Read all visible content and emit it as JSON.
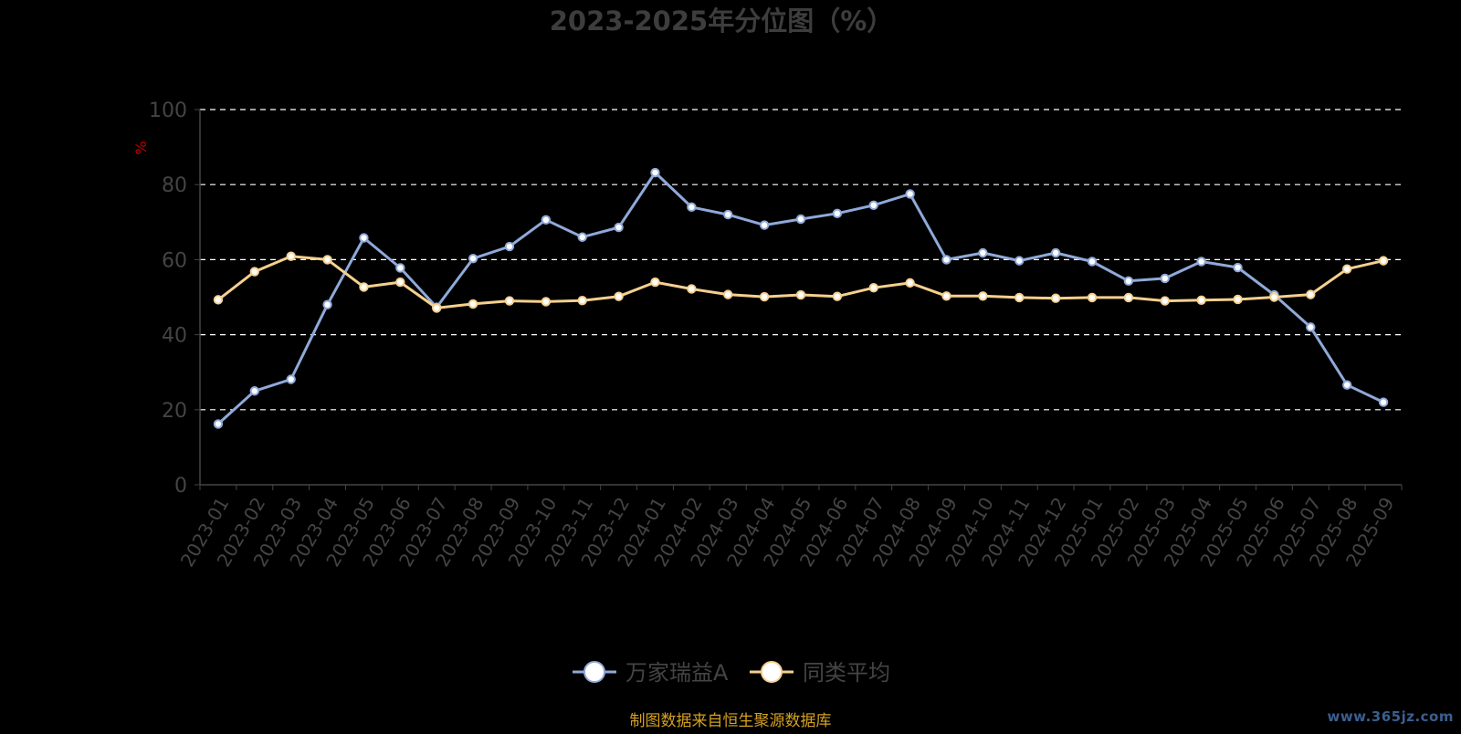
{
  "chart_data": {
    "type": "line",
    "title": "2023-2025年分位图（%）",
    "ylabel": "%",
    "xlabel": "",
    "ylim": [
      0,
      100
    ],
    "yticks": [
      0,
      20,
      40,
      60,
      80,
      100
    ],
    "grid": true,
    "legend_position": "bottom-center",
    "categories": [
      "2023-01",
      "2023-02",
      "2023-03",
      "2023-04",
      "2023-05",
      "2023-06",
      "2023-07",
      "2023-08",
      "2023-09",
      "2023-10",
      "2023-11",
      "2023-12",
      "2024-01",
      "2024-02",
      "2024-03",
      "2024-04",
      "2024-05",
      "2024-06",
      "2024-07",
      "2024-08",
      "2024-09",
      "2024-10",
      "2024-11",
      "2024-12",
      "2025-01",
      "2025-02",
      "2025-03",
      "2025-04",
      "2025-05",
      "2025-06",
      "2025-07",
      "2025-08",
      "2025-09"
    ],
    "series": [
      {
        "name": "万家瑞益A",
        "color": "#8fa9d9",
        "values": [
          16.2,
          25.0,
          28.1,
          48.0,
          65.8,
          57.8,
          47.3,
          60.3,
          63.5,
          70.6,
          66.0,
          68.6,
          83.2,
          74.0,
          72.0,
          69.2,
          70.8,
          72.3,
          74.5,
          77.5,
          60.0,
          61.8,
          59.7,
          61.8,
          59.5,
          54.3,
          55.0,
          59.5,
          57.9,
          50.6,
          42.0,
          26.6,
          22.0
        ]
      },
      {
        "name": "同类平均",
        "color": "#f5d08e",
        "values": [
          49.3,
          56.8,
          60.9,
          60.0,
          52.7,
          54.0,
          47.1,
          48.2,
          49.0,
          48.8,
          49.1,
          50.2,
          54.0,
          52.2,
          50.7,
          50.1,
          50.6,
          50.2,
          52.5,
          53.8,
          50.3,
          50.3,
          49.9,
          49.7,
          49.9,
          49.9,
          49.0,
          49.2,
          49.4,
          50.0,
          50.7,
          57.5,
          59.7
        ]
      }
    ]
  },
  "source_note": "制图数据来自恒生聚源数据库",
  "watermark": "www.365jz.com",
  "colors": {
    "background": "#000000",
    "axis_text": "#444444",
    "ylabel": "#cc0000",
    "grid": "#ffffff",
    "source_note": "#d4a020"
  }
}
